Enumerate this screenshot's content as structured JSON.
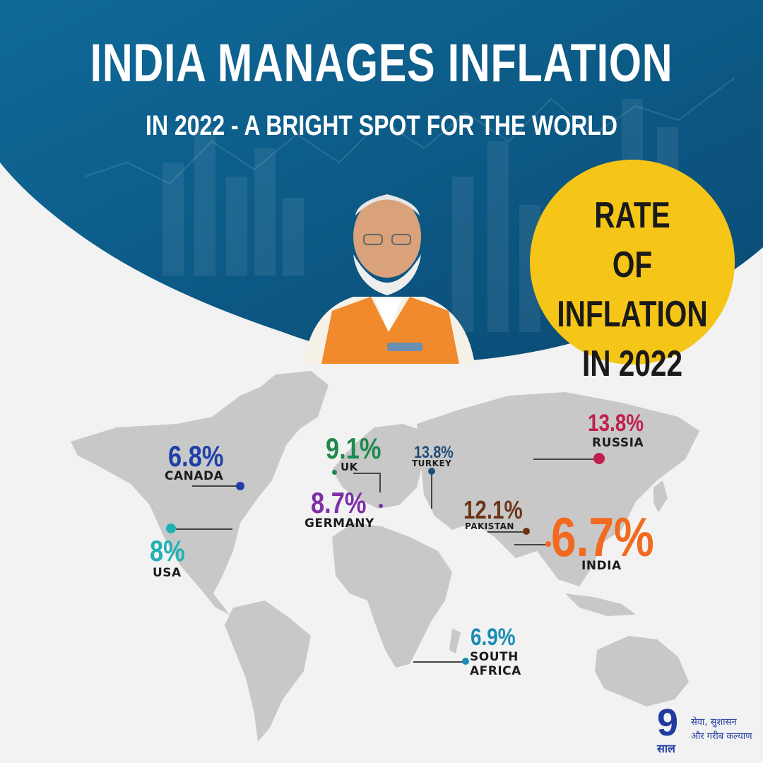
{
  "header": {
    "title": "INDIA MANAGES INFLATION",
    "subtitle": "IN 2022 - A BRIGHT SPOT FOR THE WORLD"
  },
  "badge": {
    "line1": "RATE",
    "line2": "OF INFLATION",
    "line3": "IN 2022"
  },
  "countries": {
    "canada": {
      "rate": "6.8%",
      "name": "CANADA",
      "color": "#1f3fa8"
    },
    "usa": {
      "rate": "8%",
      "name": "USA",
      "color": "#22b1b3"
    },
    "uk": {
      "rate": "9.1%",
      "name": "UK",
      "color": "#1e8a4c"
    },
    "germany": {
      "rate": "8.7%",
      "name": "GERMANY",
      "color": "#7d2fa8"
    },
    "turkey": {
      "rate": "13.8%",
      "name": "TURKEY",
      "color": "#1e4e79"
    },
    "russia": {
      "rate": "13.8%",
      "name": "RUSSIA",
      "color": "#c01f4f"
    },
    "pakistan": {
      "rate": "12.1%",
      "name": "PAKISTAN",
      "color": "#6b3515"
    },
    "india": {
      "rate": "6.7%",
      "name": "INDIA",
      "color": "#f26a1f"
    },
    "south_africa": {
      "rate": "6.9%",
      "name_line1": "SOUTH",
      "name_line2": "AFRICA",
      "color": "#1a8cb5"
    }
  },
  "logo": {
    "numeral": "9",
    "word": "साल",
    "tagline1": "सेवा, सुशासन",
    "tagline2": "और गरीब कल्याण"
  },
  "colors": {
    "header_blue": "#0d5a85",
    "badge_yellow": "#f5c518",
    "map_gray": "#c8c8c8"
  }
}
